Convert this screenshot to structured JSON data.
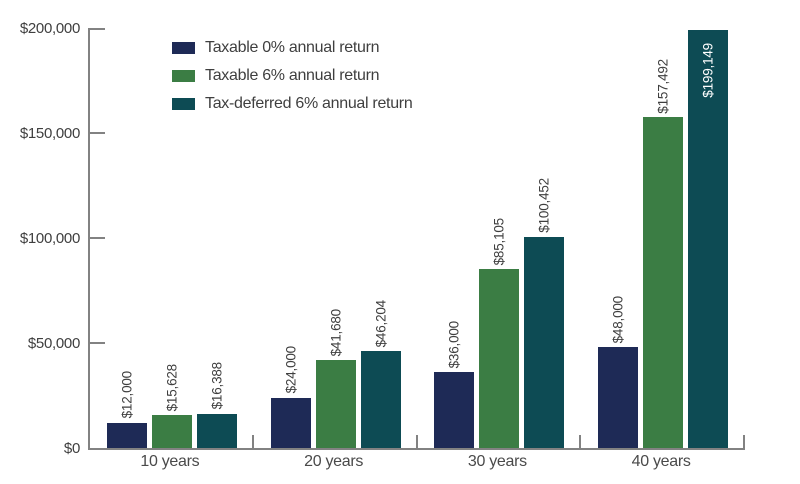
{
  "chart_data": {
    "type": "bar",
    "title": "",
    "categories": [
      "10 years",
      "20 years",
      "30 years",
      "40 years"
    ],
    "series": [
      {
        "name": "Taxable 0% annual return",
        "color": "#1e2a56",
        "values": [
          12000,
          24000,
          36000,
          48000
        ],
        "value_labels": [
          "$12,000",
          "$24,000",
          "$36,000",
          "$48,000"
        ]
      },
      {
        "name": "Taxable 6% annual return",
        "color": "#3b7d44",
        "values": [
          15628,
          41680,
          85105,
          157492
        ],
        "value_labels": [
          "$15,628",
          "$41,680",
          "$85,105",
          "$157,492"
        ]
      },
      {
        "name": "Tax-deferred 6% annual return",
        "color": "#0d4b54",
        "values": [
          16388,
          46204,
          100452,
          199149
        ],
        "value_labels": [
          "$16,388",
          "$46,204",
          "$100,452",
          "$199,149"
        ]
      }
    ],
    "y_axis": {
      "min": 0,
      "max": 200000,
      "tick_step": 50000,
      "tick_labels": [
        "$0",
        "$50,000",
        "$100,000",
        "$150,000",
        "$200,000"
      ]
    },
    "xlabel": "",
    "ylabel": "",
    "grid": false,
    "legend_position": "top-left",
    "value_labels_rotated": true,
    "overflow_label": {
      "series_index": 2,
      "category_index": 3,
      "placement": "inside",
      "color": "#ffffff"
    }
  },
  "style": {
    "background": "#ffffff",
    "axis_color": "#828282",
    "text_color": "#3f3f3f",
    "bar_colors": [
      "#1e2a56",
      "#3b7d44",
      "#0d4b54"
    ]
  }
}
